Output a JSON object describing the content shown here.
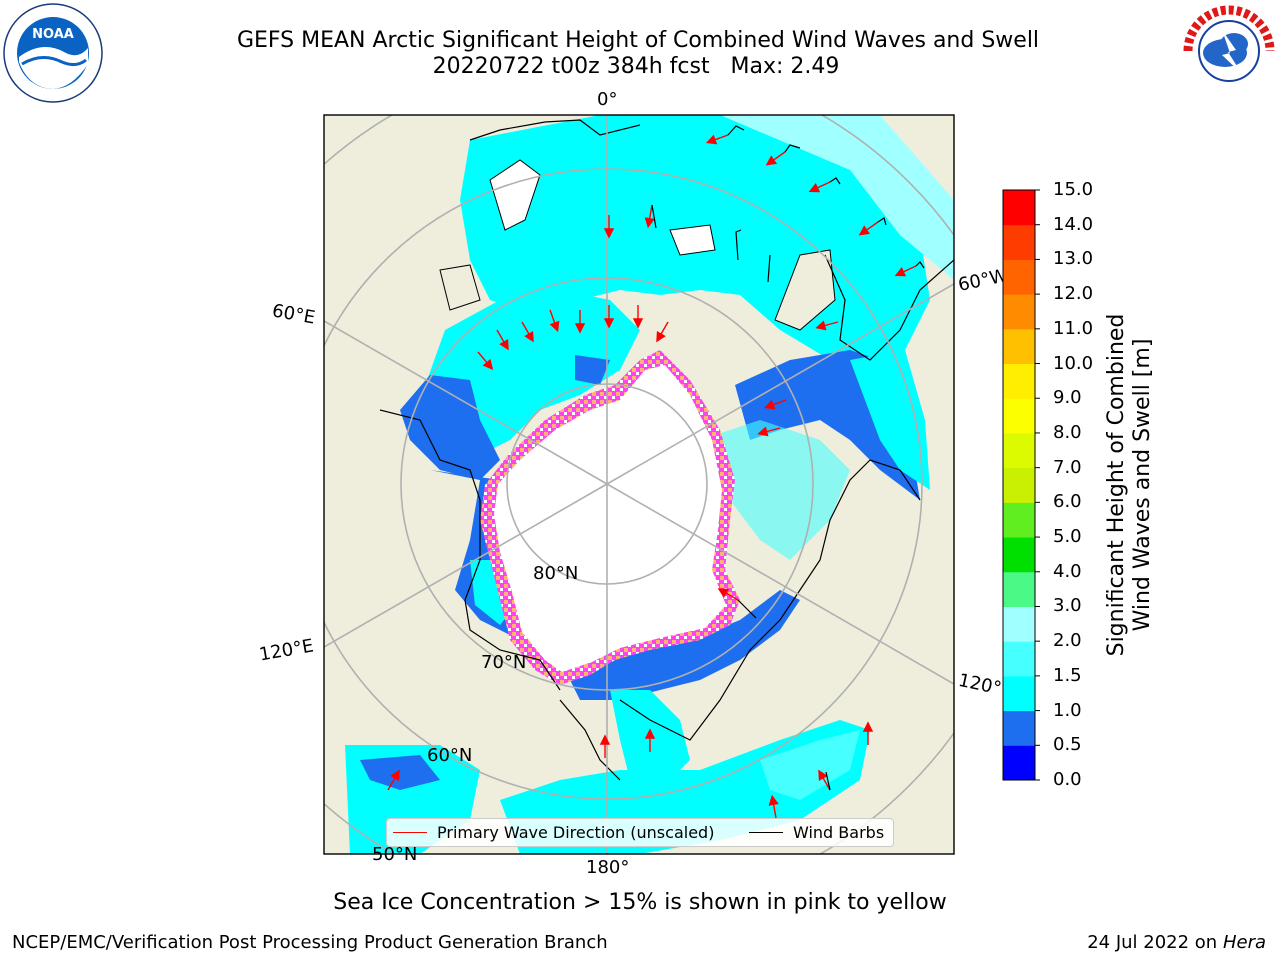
{
  "title": {
    "line1": "GEFS MEAN Arctic Significant Height of Combined Wind Waves and Swell",
    "line2": "20220722 t00z 384h fcst   Max: 2.49"
  },
  "logos": {
    "left": "NOAA",
    "right_text": "NATIONAL WEATHER SERVICE"
  },
  "map": {
    "longitude_labels": [
      "0°",
      "60°W",
      "120°W",
      "180°",
      "120°E",
      "60°E"
    ],
    "latitude_labels": [
      "80°N",
      "70°N",
      "60°N",
      "50°N"
    ],
    "legend": {
      "primary_wave": "Primary Wave Direction (unscaled)",
      "wind_barbs": "Wind Barbs"
    },
    "colors": {
      "ocean_land": "#efeedd",
      "ice": "#ffffff",
      "wave_arrow": "#ff0000",
      "barb": "#000000",
      "grid": "#b0b0b0"
    }
  },
  "colorbar": {
    "title_line1": "Significant Height of Combined",
    "title_line2": "Wind Waves and Swell [m]",
    "ticks": [
      "0.0",
      "0.5",
      "1.0",
      "1.5",
      "2.0",
      "3.0",
      "4.0",
      "5.0",
      "6.0",
      "7.0",
      "8.0",
      "9.0",
      "10.0",
      "11.0",
      "12.0",
      "13.0",
      "14.0",
      "15.0"
    ],
    "colors": [
      "#0000ff",
      "#1e6ff0",
      "#00ffff",
      "#46ffff",
      "#a0ffff",
      "#4bf987",
      "#00e000",
      "#60ee20",
      "#c8f000",
      "#dcfa00",
      "#fbff00",
      "#ffee00",
      "#ffc000",
      "#ff8c00",
      "#ff6400",
      "#ff3c00",
      "#ff0000"
    ]
  },
  "caption": "Sea Ice Concentration > 15% is shown in pink to yellow",
  "footer": {
    "left": "NCEP/EMC/Verification Post Processing Product Generation Branch",
    "right_date": "24 Jul 2022 on ",
    "right_host": "Hera"
  }
}
